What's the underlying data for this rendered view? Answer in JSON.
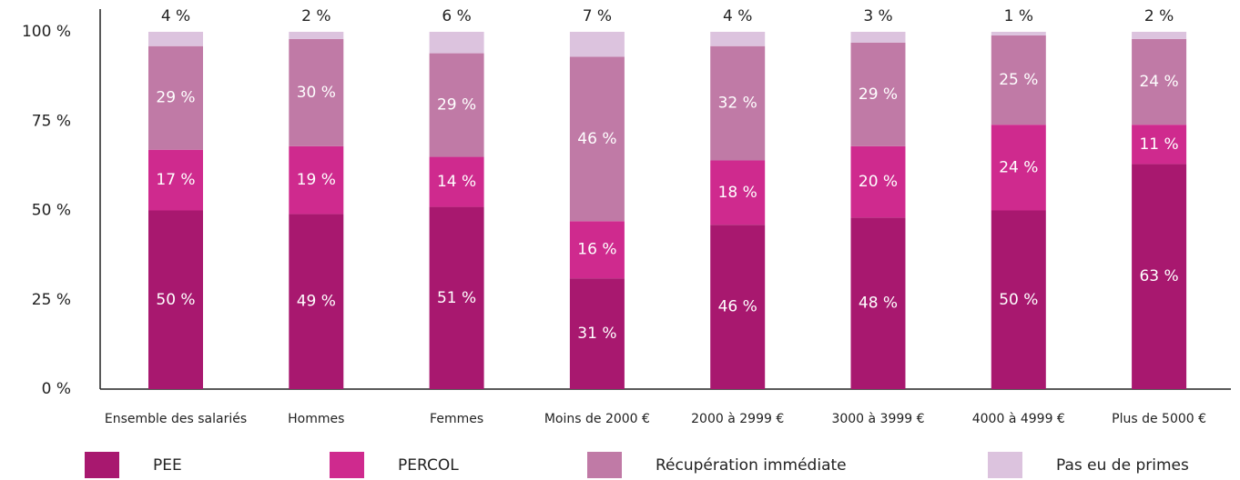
{
  "chart_data": {
    "type": "stacked_bar",
    "categories": [
      "Ensemble des salariés",
      "Hommes",
      "Femmes",
      "Moins de 2000 €",
      "2000 à 2999 €",
      "3000 à 3999 €",
      "4000 à 4999 €",
      "Plus de 5000 €"
    ],
    "series": [
      {
        "name": "PEE",
        "color": "#a8186f",
        "values": [
          50,
          49,
          51,
          31,
          46,
          48,
          50,
          63
        ],
        "value_labels": [
          "50 %",
          "49 %",
          "51 %",
          "31 %",
          "46 %",
          "48 %",
          "50 %",
          "63 %"
        ]
      },
      {
        "name": "PERCOL",
        "color": "#cf2a8e",
        "values": [
          17,
          19,
          14,
          16,
          18,
          20,
          24,
          11
        ],
        "value_labels": [
          "17 %",
          "19 %",
          "14 %",
          "16 %",
          "18 %",
          "20 %",
          "24 %",
          "11 %"
        ]
      },
      {
        "name": "Récupération immédiate",
        "color": "#c07aa6",
        "values": [
          29,
          30,
          29,
          46,
          32,
          29,
          25,
          24
        ],
        "value_labels": [
          "29 %",
          "30 %",
          "29 %",
          "46 %",
          "32 %",
          "29 %",
          "25 %",
          "24 %"
        ]
      },
      {
        "name": "Pas eu de primes",
        "color": "#dcc3de",
        "values": [
          4,
          2,
          6,
          7,
          4,
          3,
          1,
          2
        ],
        "value_labels": [
          "4 %",
          "2 %",
          "6 %",
          "7 %",
          "4 %",
          "3 %",
          "1 %",
          "2 %"
        ]
      }
    ],
    "ylim": [
      0,
      100
    ],
    "yticks": [
      {
        "value": 0,
        "label": "0 %"
      },
      {
        "value": 25,
        "label": "25 %"
      },
      {
        "value": 50,
        "label": "50 %"
      },
      {
        "value": 75,
        "label": "75 %"
      },
      {
        "value": 100,
        "label": "100 %"
      }
    ]
  }
}
